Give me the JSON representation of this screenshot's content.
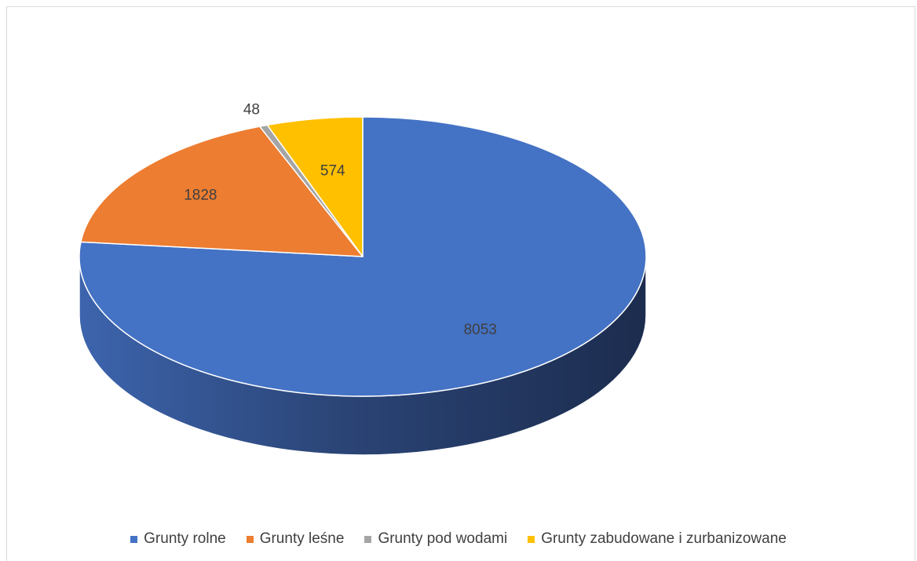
{
  "chart_data": {
    "type": "pie",
    "style": "3d",
    "categories": [
      "Grunty rolne",
      "Grunty leśne",
      "Grunty pod wodami",
      "Grunty zabudowane i zurbanizowane"
    ],
    "values": [
      8053,
      1828,
      48,
      574
    ],
    "data_labels": [
      "8053",
      "1828",
      "48",
      "574"
    ],
    "colors": [
      "#4472c4",
      "#ed7d31",
      "#a5a5a5",
      "#ffc000"
    ],
    "title": "",
    "legend_position": "bottom"
  }
}
